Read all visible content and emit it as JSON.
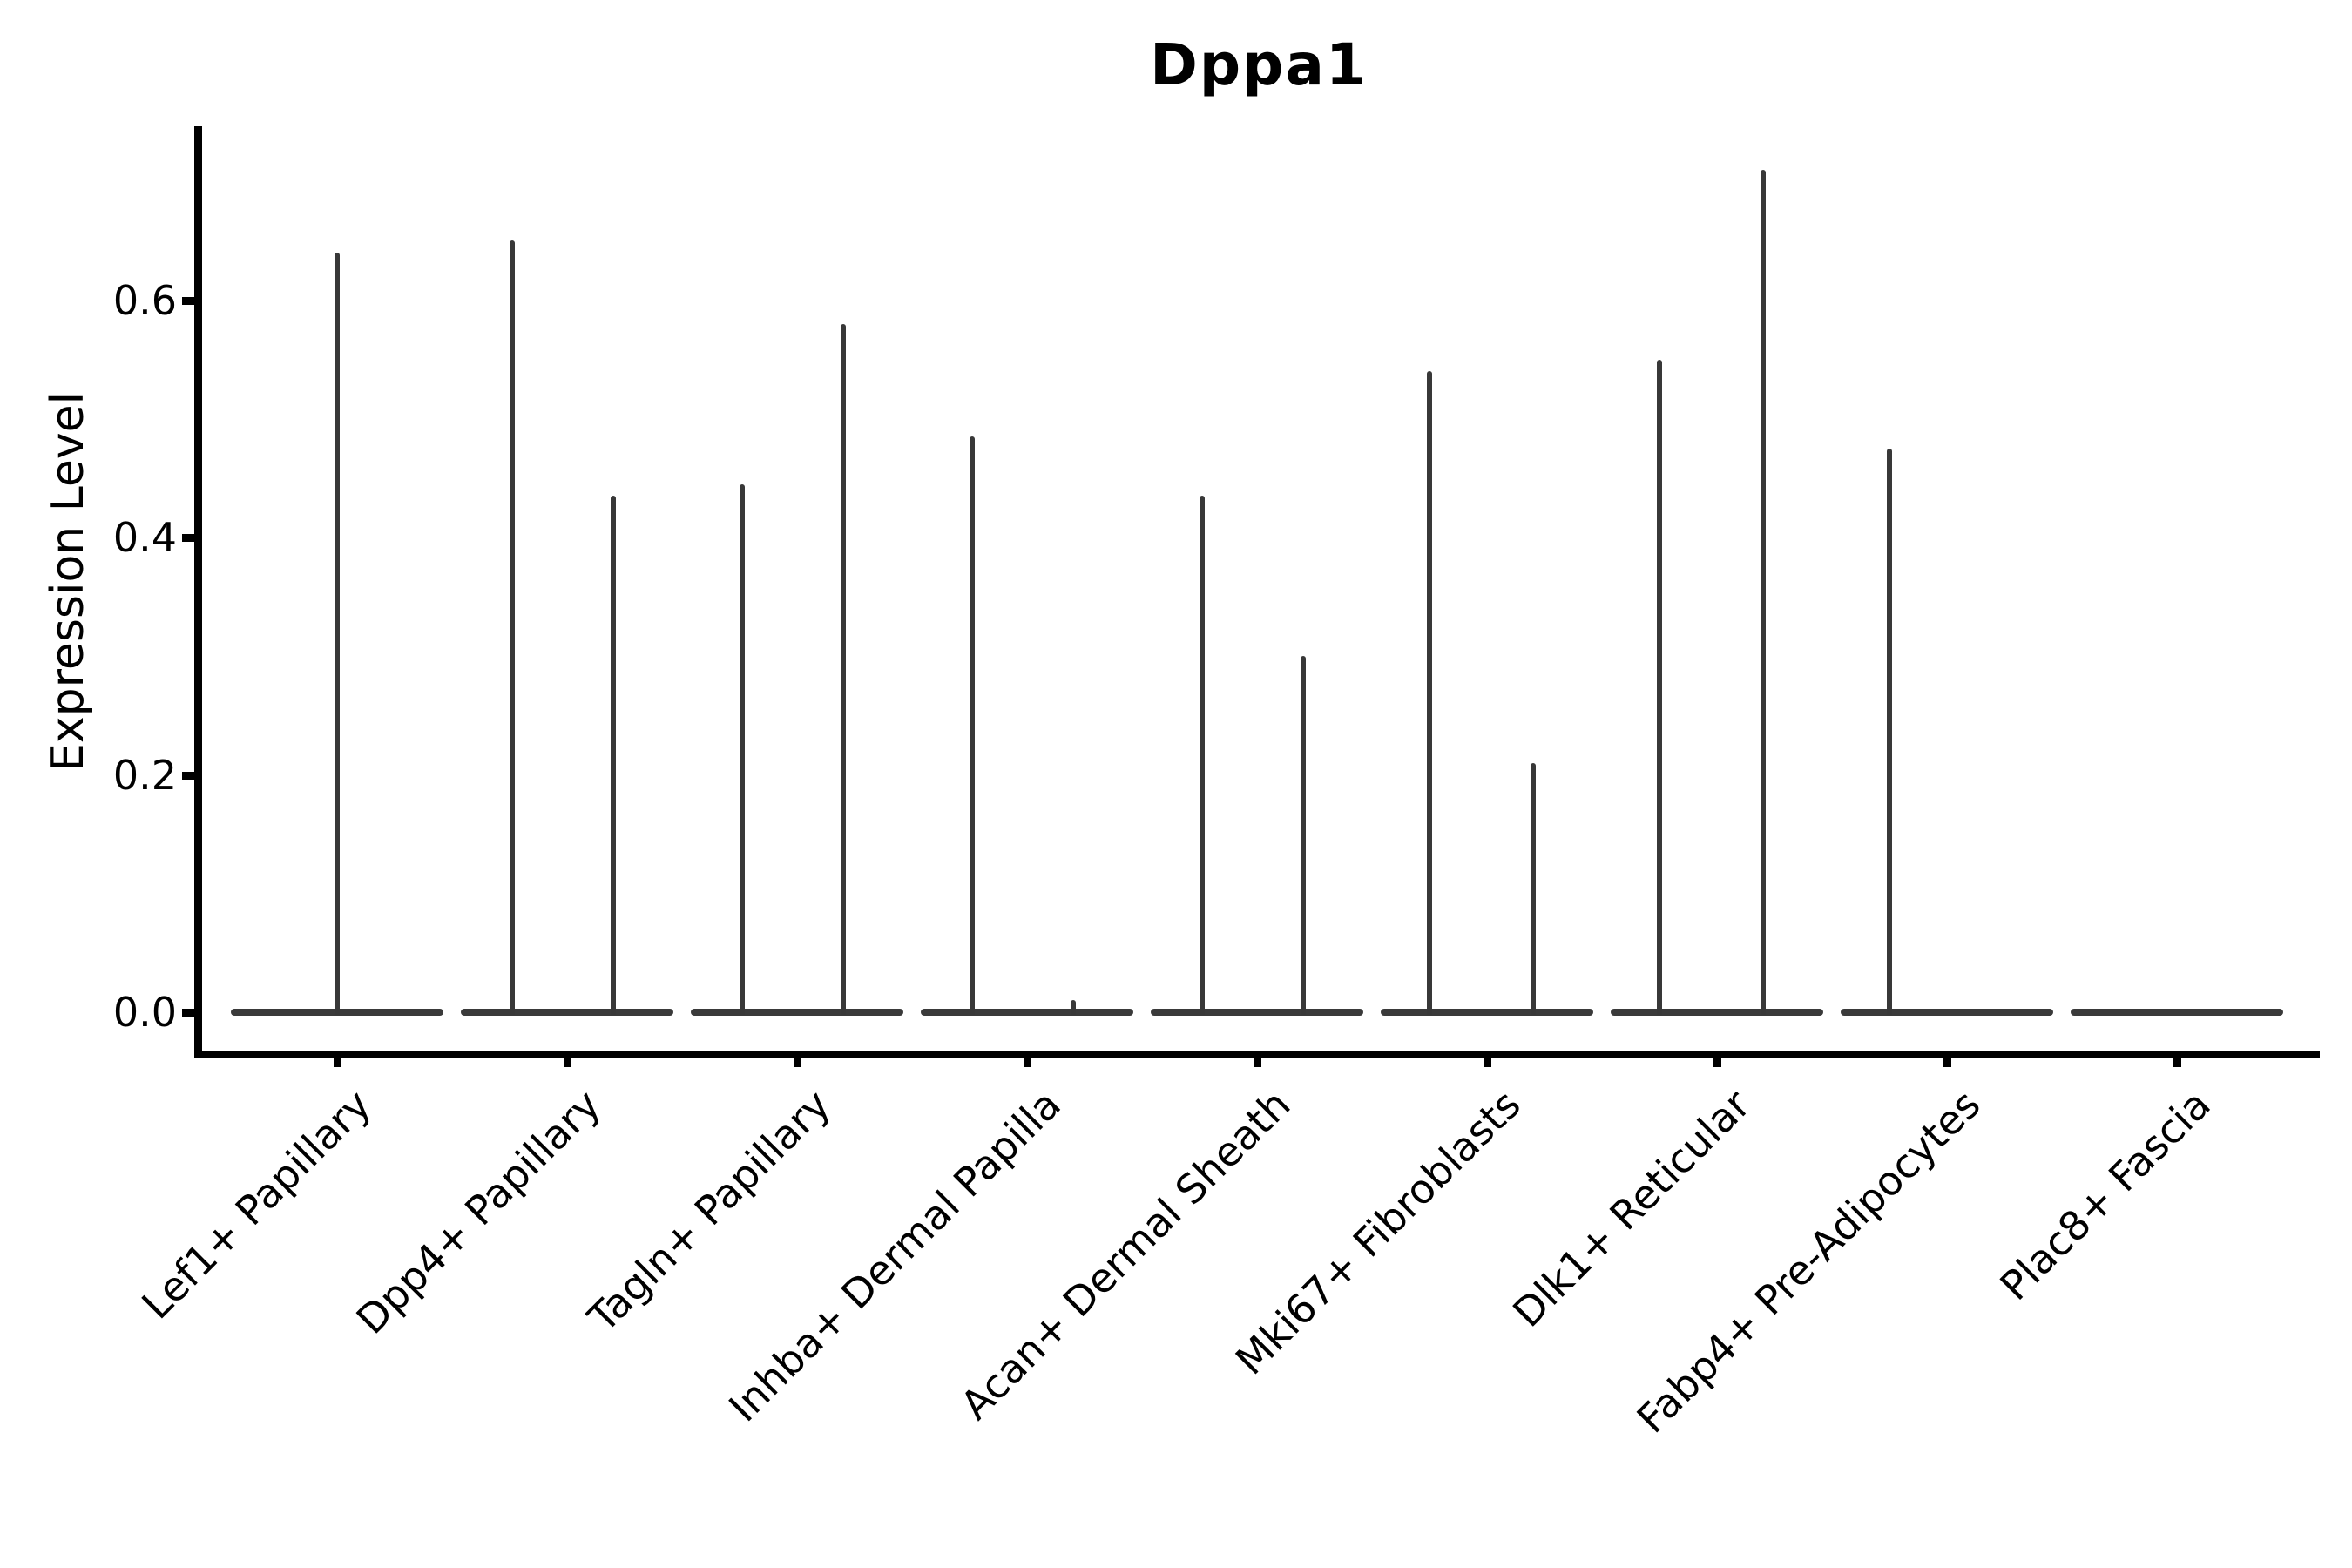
{
  "figure": {
    "title": "Dppa1",
    "ylabel": "Expression Level"
  },
  "colors": {
    "background": "#ffffff",
    "axis": "#000000",
    "violin": "#3a3a3a",
    "text": "#000000"
  },
  "chart_data": {
    "type": "violin",
    "title": "Dppa1",
    "xlabel": "",
    "ylabel": "Expression Level",
    "ylim": [
      0.0,
      0.745
    ],
    "yticks": [
      0.0,
      0.2,
      0.4,
      0.6
    ],
    "ytick_labels": [
      "0.0",
      "0.2",
      "0.4",
      "0.6"
    ],
    "grid": false,
    "legend": "none",
    "xtick_rotation_deg": 45,
    "categories": [
      "Lef1+ Papillary",
      "Dpp4+ Papillary",
      "Tagln+ Papillary",
      "Inhba+ Dermal Papilla",
      "Acan+ Dermal Sheath",
      "Mki67+ Fibroblasts",
      "Dlk1+ Reticular",
      "Fabp4+ Pre-Adipocytes",
      "Plac8+ Fascia"
    ],
    "series": [
      {
        "category": "Lef1+ Papillary",
        "baseline_value": 0.0,
        "spikes": [
          {
            "offset_frac": 0.0,
            "value": 0.64
          }
        ]
      },
      {
        "category": "Dpp4+ Papillary",
        "baseline_value": 0.0,
        "spikes": [
          {
            "offset_frac": -0.24,
            "value": 0.65
          },
          {
            "offset_frac": 0.2,
            "value": 0.435
          }
        ]
      },
      {
        "category": "Tagln+ Papillary",
        "baseline_value": 0.0,
        "spikes": [
          {
            "offset_frac": -0.24,
            "value": 0.445
          },
          {
            "offset_frac": 0.2,
            "value": 0.58
          }
        ]
      },
      {
        "category": "Inhba+ Dermal Papilla",
        "baseline_value": 0.0,
        "spikes": [
          {
            "offset_frac": -0.24,
            "value": 0.485
          },
          {
            "offset_frac": 0.2,
            "value": 0.01
          }
        ]
      },
      {
        "category": "Acan+ Dermal Sheath",
        "baseline_value": 0.0,
        "spikes": [
          {
            "offset_frac": -0.24,
            "value": 0.435
          },
          {
            "offset_frac": 0.2,
            "value": 0.3
          }
        ]
      },
      {
        "category": "Mki67+ Fibroblasts",
        "baseline_value": 0.0,
        "spikes": [
          {
            "offset_frac": -0.25,
            "value": 0.54
          },
          {
            "offset_frac": 0.2,
            "value": 0.21
          }
        ]
      },
      {
        "category": "Dlk1+ Reticular",
        "baseline_value": 0.0,
        "spikes": [
          {
            "offset_frac": -0.25,
            "value": 0.55
          },
          {
            "offset_frac": 0.2,
            "value": 0.71
          }
        ]
      },
      {
        "category": "Fabp4+ Pre-Adipocytes",
        "baseline_value": 0.0,
        "spikes": [
          {
            "offset_frac": -0.25,
            "value": 0.475
          }
        ]
      },
      {
        "category": "Plac8+ Fascia",
        "baseline_value": 0.0,
        "spikes": []
      }
    ]
  }
}
